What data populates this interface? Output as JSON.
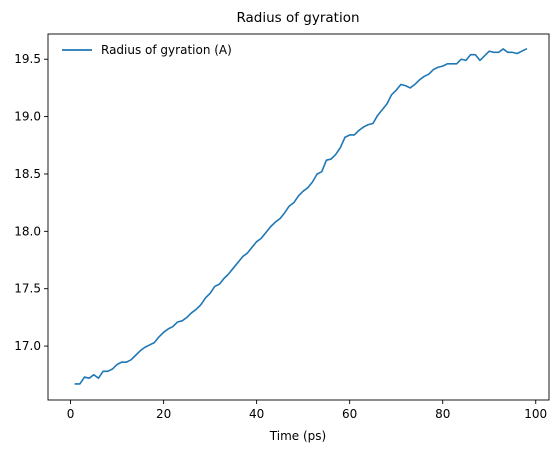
{
  "chart_data": {
    "type": "line",
    "title": "Radius of gyration",
    "xlabel": "Time (ps)",
    "ylabel": "",
    "xlim": [
      -4.85,
      102.85
    ],
    "ylim": [
      16.53,
      19.72
    ],
    "xticks": [
      0,
      20,
      40,
      60,
      80,
      100
    ],
    "yticks": [
      17.0,
      17.5,
      18.0,
      18.5,
      19.0,
      19.5
    ],
    "xtick_labels": [
      "0",
      "20",
      "40",
      "60",
      "80",
      "100"
    ],
    "ytick_labels": [
      "17.0",
      "17.5",
      "18.0",
      "18.5",
      "19.0",
      "19.5"
    ],
    "grid": false,
    "legend_position": "top-left",
    "series": [
      {
        "name": "Radius of gyration (A)",
        "color": "#1f77b4",
        "x": [
          1,
          2,
          3,
          4,
          5,
          6,
          7,
          8,
          9,
          10,
          11,
          12,
          13,
          14,
          15,
          16,
          17,
          18,
          19,
          20,
          21,
          22,
          23,
          24,
          25,
          26,
          27,
          28,
          29,
          30,
          31,
          32,
          33,
          34,
          35,
          36,
          37,
          38,
          39,
          40,
          41,
          42,
          43,
          44,
          45,
          46,
          47,
          48,
          49,
          50,
          51,
          52,
          53,
          54,
          55,
          56,
          57,
          58,
          59,
          60,
          61,
          62,
          63,
          64,
          65,
          66,
          67,
          68,
          69,
          70,
          71,
          72,
          73,
          74,
          75,
          76,
          77,
          78,
          79,
          80,
          81,
          82,
          83,
          84,
          85,
          86,
          87,
          88,
          89,
          90,
          91,
          92,
          93,
          94,
          95,
          96,
          97,
          98
        ],
        "y": [
          16.67,
          16.67,
          16.73,
          16.72,
          16.75,
          16.72,
          16.78,
          16.78,
          16.8,
          16.84,
          16.86,
          16.86,
          16.88,
          16.92,
          16.96,
          16.99,
          17.01,
          17.03,
          17.08,
          17.12,
          17.15,
          17.17,
          17.21,
          17.22,
          17.25,
          17.29,
          17.32,
          17.36,
          17.42,
          17.46,
          17.52,
          17.54,
          17.59,
          17.63,
          17.68,
          17.73,
          17.78,
          17.81,
          17.86,
          17.91,
          17.94,
          17.99,
          18.04,
          18.08,
          18.11,
          18.16,
          18.22,
          18.25,
          18.31,
          18.35,
          18.38,
          18.43,
          18.5,
          18.52,
          18.62,
          18.63,
          18.67,
          18.73,
          18.82,
          18.84,
          18.84,
          18.88,
          18.91,
          18.93,
          18.94,
          19.01,
          19.06,
          19.11,
          19.19,
          19.23,
          19.28,
          19.27,
          19.25,
          19.28,
          19.32,
          19.35,
          19.37,
          19.41,
          19.43,
          19.44,
          19.46,
          19.46,
          19.46,
          19.5,
          19.49,
          19.54,
          19.54,
          19.49,
          19.53,
          19.57,
          19.56,
          19.56,
          19.59,
          19.56,
          19.56,
          19.55,
          19.57,
          19.59
        ]
      }
    ]
  }
}
